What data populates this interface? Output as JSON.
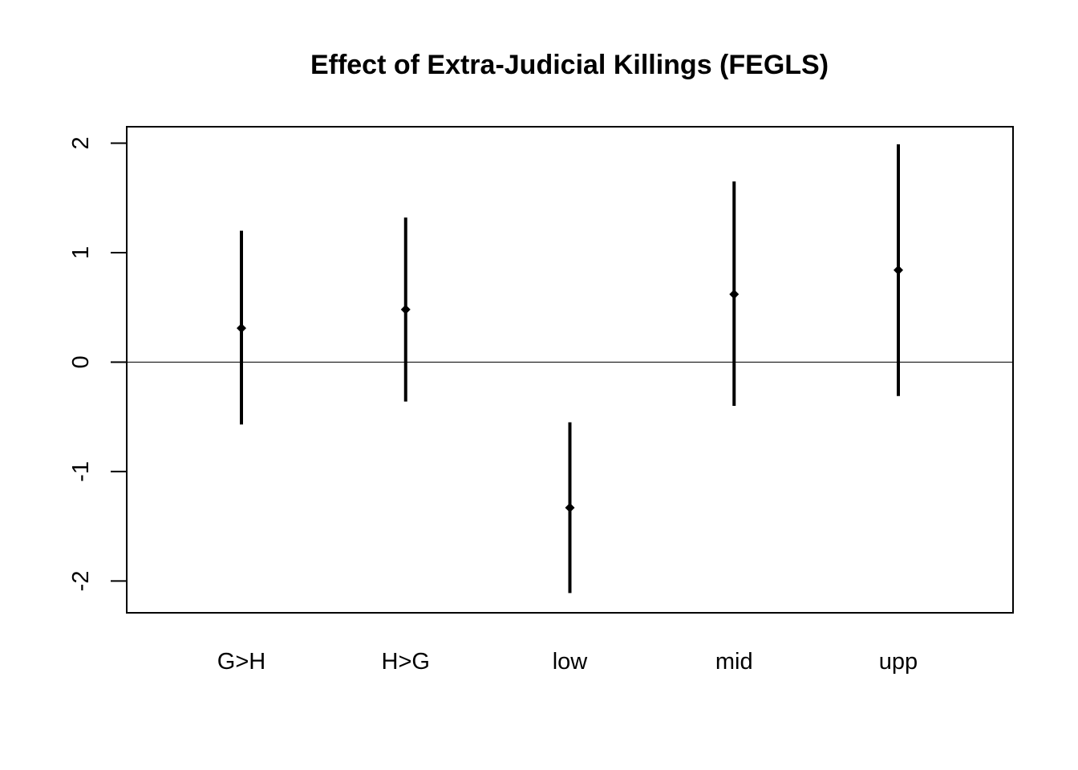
{
  "chart_data": {
    "type": "scatter",
    "title": "Effect of Extra-Judicial Killings (FEGLS)",
    "xlabel": "",
    "ylabel": "",
    "categories": [
      "G>H",
      "H>G",
      "low",
      "mid",
      "upp"
    ],
    "series": [
      {
        "estimates": [
          0.31,
          0.48,
          -1.33,
          0.62,
          0.84
        ],
        "lower": [
          -0.57,
          -0.36,
          -2.11,
          -0.4,
          -0.31
        ],
        "upper": [
          1.2,
          1.32,
          -0.55,
          1.65,
          1.99
        ]
      }
    ],
    "ylim": [
      -2.29,
      2.15
    ],
    "yticks": [
      -2,
      -1,
      0,
      1,
      2
    ],
    "reference_line": 0,
    "grid": false,
    "legend": "none",
    "colors": {
      "marks": "#000000",
      "background": "#ffffff"
    }
  }
}
